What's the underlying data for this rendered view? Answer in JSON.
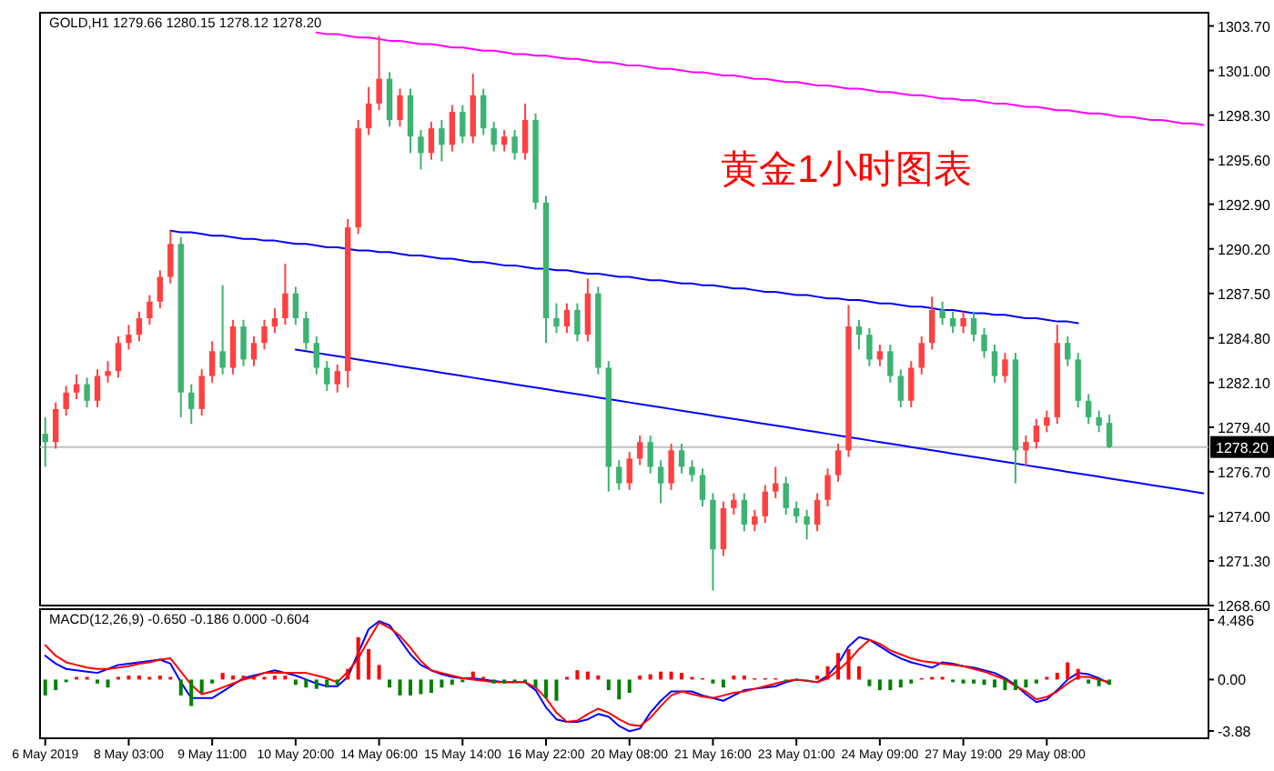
{
  "chart_data": [
    {
      "type": "candlestick",
      "title": "GOLD,H1 1279.66 1280.15 1278.12 1278.20",
      "annotations": [
        "黄金1小时图表"
      ],
      "categories": [
        null,
        null,
        null,
        null,
        null,
        null,
        null,
        null,
        null,
        null,
        null,
        null,
        null,
        null,
        null,
        null,
        null,
        null,
        null,
        null,
        null,
        null,
        null,
        null,
        null,
        null,
        null,
        null,
        null,
        null,
        null,
        null,
        null,
        null,
        null,
        null,
        null,
        null,
        null,
        null,
        null,
        null,
        null,
        null,
        null,
        null,
        null,
        null,
        null,
        null,
        null,
        null,
        null,
        null,
        null,
        null,
        null,
        null,
        null,
        null,
        null,
        null,
        null,
        null,
        null,
        null,
        null,
        null,
        null,
        null,
        null,
        null,
        null,
        null,
        null,
        null,
        null,
        null,
        null,
        null,
        null,
        null,
        null,
        null,
        null,
        null,
        null,
        null,
        null,
        null,
        null,
        null,
        null,
        null,
        null,
        null,
        null,
        null,
        null,
        null,
        null,
        null,
        null,
        null,
        null,
        null,
        null,
        null,
        null,
        null,
        null,
        null
      ],
      "ylim": [
        1268.6,
        1304.5
      ],
      "yticks": [
        {
          "value": 1268.6,
          "label": "1268.60"
        },
        {
          "value": 1271.3,
          "label": "1271.30"
        },
        {
          "value": 1274,
          "label": "1274.00"
        },
        {
          "value": 1276.7,
          "label": "1276.70"
        },
        {
          "value": 1279.4,
          "label": "1279.40"
        },
        {
          "value": 1282.1,
          "label": "1282.10"
        },
        {
          "value": 1284.8,
          "label": "1284.80"
        },
        {
          "value": 1287.5,
          "label": "1287.50"
        },
        {
          "value": 1290.2,
          "label": "1290.20"
        },
        {
          "value": 1292.9,
          "label": "1292.90"
        },
        {
          "value": 1295.6,
          "label": "1295.60"
        },
        {
          "value": 1298.3,
          "label": "1298.30"
        },
        {
          "value": 1301,
          "label": "1301.00"
        },
        {
          "value": 1303.7,
          "label": "1303.70"
        }
      ],
      "ref_lines": [
        {
          "axis": "y",
          "value": 1278.2,
          "label": "1278.20",
          "color": "#c0c0c0"
        }
      ],
      "ohlc": [
        [
          1279.0,
          1280.0,
          1277.0,
          1278.5
        ],
        [
          1278.5,
          1280.9,
          1278.1,
          1280.5
        ],
        [
          1280.5,
          1281.9,
          1280.1,
          1281.5
        ],
        [
          1281.5,
          1282.6,
          1281.1,
          1282.0
        ],
        [
          1282.0,
          1282.4,
          1280.6,
          1281.0
        ],
        [
          1281.0,
          1282.9,
          1280.6,
          1282.5
        ],
        [
          1282.5,
          1283.4,
          1282.1,
          1282.8
        ],
        [
          1282.8,
          1284.9,
          1282.4,
          1284.5
        ],
        [
          1284.5,
          1285.6,
          1284.1,
          1285.0
        ],
        [
          1285.0,
          1286.4,
          1284.6,
          1286.0
        ],
        [
          1286.0,
          1287.4,
          1285.6,
          1287.0
        ],
        [
          1287.0,
          1288.9,
          1286.6,
          1288.5
        ],
        [
          1288.5,
          1291.3,
          1288.1,
          1290.5
        ],
        [
          1290.5,
          1290.9,
          1280.0,
          1281.5
        ],
        [
          1281.5,
          1282.0,
          1279.6,
          1280.5
        ],
        [
          1280.5,
          1282.9,
          1280.1,
          1282.5
        ],
        [
          1282.5,
          1284.6,
          1282.1,
          1284.0
        ],
        [
          1284.0,
          1288.0,
          1282.6,
          1283.0
        ],
        [
          1283.0,
          1285.9,
          1282.6,
          1285.5
        ],
        [
          1285.5,
          1285.9,
          1283.1,
          1283.5
        ],
        [
          1283.5,
          1284.9,
          1283.1,
          1284.5
        ],
        [
          1284.5,
          1285.9,
          1284.1,
          1285.5
        ],
        [
          1285.5,
          1286.6,
          1285.1,
          1286.0
        ],
        [
          1286.0,
          1289.3,
          1285.6,
          1287.5
        ],
        [
          1287.5,
          1287.9,
          1285.6,
          1286.0
        ],
        [
          1286.0,
          1286.4,
          1284.1,
          1284.5
        ],
        [
          1284.5,
          1284.9,
          1282.6,
          1283.0
        ],
        [
          1283.0,
          1283.4,
          1281.6,
          1282.0
        ],
        [
          1282.0,
          1283.2,
          1281.5,
          1282.8
        ],
        [
          1282.8,
          1292.0,
          1281.8,
          1291.5
        ],
        [
          1291.5,
          1298.0,
          1291.1,
          1297.5
        ],
        [
          1297.5,
          1300.0,
          1297.1,
          1299.0
        ],
        [
          1299.0,
          1303.1,
          1298.6,
          1300.5
        ],
        [
          1300.5,
          1300.9,
          1297.6,
          1298.0
        ],
        [
          1298.0,
          1299.9,
          1297.6,
          1299.5
        ],
        [
          1299.5,
          1299.9,
          1296.0,
          1297.0
        ],
        [
          1297.0,
          1297.4,
          1295.0,
          1296.0
        ],
        [
          1296.0,
          1297.9,
          1295.6,
          1297.5
        ],
        [
          1297.5,
          1298.0,
          1295.5,
          1296.5
        ],
        [
          1296.5,
          1298.9,
          1296.1,
          1298.5
        ],
        [
          1298.5,
          1298.9,
          1296.6,
          1297.0
        ],
        [
          1297.0,
          1300.8,
          1296.6,
          1299.5
        ],
        [
          1299.5,
          1299.9,
          1297.1,
          1297.5
        ],
        [
          1297.5,
          1297.9,
          1296.1,
          1296.5
        ],
        [
          1296.5,
          1297.4,
          1296.1,
          1297.0
        ],
        [
          1297.0,
          1297.4,
          1295.6,
          1296.0
        ],
        [
          1296.0,
          1299.0,
          1295.6,
          1298.0
        ],
        [
          1298.0,
          1298.4,
          1292.6,
          1293.0
        ],
        [
          1293.0,
          1293.4,
          1284.5,
          1286.0
        ],
        [
          1286.0,
          1286.9,
          1285.1,
          1285.5
        ],
        [
          1285.5,
          1286.9,
          1285.1,
          1286.5
        ],
        [
          1286.5,
          1286.9,
          1284.6,
          1285.0
        ],
        [
          1285.0,
          1288.4,
          1284.6,
          1287.5
        ],
        [
          1287.5,
          1287.9,
          1282.6,
          1283.0
        ],
        [
          1283.0,
          1283.4,
          1275.5,
          1277.0
        ],
        [
          1277.0,
          1277.4,
          1275.6,
          1276.0
        ],
        [
          1276.0,
          1277.9,
          1275.6,
          1277.5
        ],
        [
          1277.5,
          1278.9,
          1277.1,
          1278.5
        ],
        [
          1278.5,
          1278.9,
          1276.6,
          1277.0
        ],
        [
          1277.0,
          1277.4,
          1274.8,
          1276.0
        ],
        [
          1276.0,
          1278.4,
          1275.6,
          1278.0
        ],
        [
          1278.0,
          1278.4,
          1276.6,
          1277.0
        ],
        [
          1277.0,
          1277.4,
          1276.1,
          1276.5
        ],
        [
          1276.5,
          1276.9,
          1274.6,
          1275.0
        ],
        [
          1275.0,
          1275.4,
          1269.5,
          1272.0
        ],
        [
          1272.0,
          1274.9,
          1271.6,
          1274.5
        ],
        [
          1274.5,
          1275.4,
          1274.1,
          1275.0
        ],
        [
          1275.0,
          1275.4,
          1273.1,
          1273.5
        ],
        [
          1273.5,
          1274.4,
          1273.1,
          1274.0
        ],
        [
          1274.0,
          1275.9,
          1273.6,
          1275.5
        ],
        [
          1275.5,
          1277.0,
          1275.1,
          1276.0
        ],
        [
          1276.0,
          1276.4,
          1274.1,
          1274.5
        ],
        [
          1274.5,
          1274.9,
          1273.6,
          1274.0
        ],
        [
          1274.0,
          1274.4,
          1272.6,
          1273.5
        ],
        [
          1273.5,
          1275.4,
          1273.1,
          1275.0
        ],
        [
          1275.0,
          1276.9,
          1274.6,
          1276.5
        ],
        [
          1276.5,
          1278.4,
          1276.1,
          1278.0
        ],
        [
          1278.0,
          1286.8,
          1277.6,
          1285.5
        ],
        [
          1285.5,
          1285.9,
          1284.1,
          1285.0
        ],
        [
          1285.0,
          1285.4,
          1283.1,
          1283.5
        ],
        [
          1283.5,
          1284.4,
          1283.1,
          1284.0
        ],
        [
          1284.0,
          1284.4,
          1282.1,
          1282.5
        ],
        [
          1282.5,
          1282.9,
          1280.6,
          1281.0
        ],
        [
          1281.0,
          1283.4,
          1280.6,
          1283.0
        ],
        [
          1283.0,
          1284.9,
          1282.6,
          1284.5
        ],
        [
          1284.5,
          1287.3,
          1284.1,
          1286.5
        ],
        [
          1286.5,
          1287.0,
          1285.6,
          1286.0
        ],
        [
          1286.0,
          1286.4,
          1285.1,
          1285.5
        ],
        [
          1285.5,
          1286.4,
          1285.1,
          1286.0
        ],
        [
          1286.0,
          1286.4,
          1284.6,
          1285.0
        ],
        [
          1285.0,
          1285.4,
          1283.6,
          1284.0
        ],
        [
          1284.0,
          1284.4,
          1282.1,
          1282.5
        ],
        [
          1282.5,
          1283.9,
          1282.1,
          1283.5
        ],
        [
          1283.5,
          1283.9,
          1276.0,
          1278.0
        ],
        [
          1278.0,
          1278.9,
          1277.1,
          1278.5
        ],
        [
          1278.5,
          1279.9,
          1278.1,
          1279.5
        ],
        [
          1279.5,
          1280.4,
          1279.1,
          1280.0
        ],
        [
          1280.0,
          1285.6,
          1279.6,
          1284.5
        ],
        [
          1284.5,
          1284.9,
          1283.1,
          1283.5
        ],
        [
          1283.5,
          1283.9,
          1280.6,
          1281.0
        ],
        [
          1281.0,
          1281.4,
          1279.6,
          1280.0
        ],
        [
          1280.0,
          1280.4,
          1279.1,
          1279.5
        ],
        [
          1279.66,
          1280.15,
          1278.12,
          1278.2
        ],
        null,
        null,
        null,
        null,
        null,
        null,
        null,
        null,
        null
      ],
      "colors": [
        "#3cb371",
        "#ff4040",
        "#ff4040",
        "#ff4040",
        "#3cb371",
        "#ff4040",
        "#ff4040",
        "#ff4040",
        "#ff4040",
        "#ff4040",
        "#ff4040",
        "#ff4040",
        "#ff4040",
        "#3cb371",
        "#3cb371",
        "#ff4040",
        "#ff4040",
        "#3cb371",
        "#ff4040",
        "#3cb371",
        "#ff4040",
        "#ff4040",
        "#ff4040",
        "#ff4040",
        "#3cb371",
        "#3cb371",
        "#3cb371",
        "#3cb371",
        "#ff4040",
        "#ff4040",
        "#ff4040",
        "#ff4040",
        "#ff4040",
        "#3cb371",
        "#ff4040",
        "#3cb371",
        "#3cb371",
        "#ff4040",
        "#3cb371",
        "#ff4040",
        "#3cb371",
        "#ff4040",
        "#3cb371",
        "#3cb371",
        "#ff4040",
        "#3cb371",
        "#ff4040",
        "#3cb371",
        "#3cb371",
        "#3cb371",
        "#ff4040",
        "#3cb371",
        "#ff4040",
        "#3cb371",
        "#3cb371",
        "#3cb371",
        "#ff4040",
        "#ff4040",
        "#3cb371",
        "#3cb371",
        "#ff4040",
        "#3cb371",
        "#3cb371",
        "#3cb371",
        "#3cb371",
        "#ff4040",
        "#ff4040",
        "#3cb371",
        "#ff4040",
        "#ff4040",
        "#ff4040",
        "#3cb371",
        "#3cb371",
        "#3cb371",
        "#ff4040",
        "#ff4040",
        "#ff4040",
        "#ff4040",
        "#3cb371",
        "#3cb371",
        "#ff4040",
        "#3cb371",
        "#3cb371",
        "#ff4040",
        "#ff4040",
        "#ff4040",
        "#3cb371",
        "#3cb371",
        "#ff4040",
        "#3cb371",
        "#3cb371",
        "#3cb371",
        "#ff4040",
        "#3cb371",
        "#ff4040",
        "#ff4040",
        "#ff4040",
        "#ff4040",
        "#3cb371",
        "#3cb371",
        "#3cb371",
        "#3cb371",
        "#3cb371",
        null,
        null,
        null,
        null,
        null,
        null,
        null,
        null,
        null
      ],
      "series": [
        {
          "type": "line",
          "color": "#ff00ff",
          "values": [
            null,
            null,
            null,
            null,
            null,
            null,
            null,
            null,
            null,
            null,
            null,
            null,
            null,
            null,
            null,
            null,
            null,
            null,
            null,
            null,
            null,
            null,
            null,
            null,
            null,
            null,
            1303.3,
            1303.2,
            1303.2,
            1303.1,
            1303.0,
            1303.0,
            1302.9,
            1302.8,
            1302.8,
            1302.7,
            1302.6,
            1302.6,
            1302.5,
            1302.4,
            1302.4,
            1302.3,
            1302.2,
            1302.2,
            1302.1,
            1302.0,
            1302.0,
            1301.9,
            1301.9,
            1301.8,
            1301.7,
            1301.7,
            1301.6,
            1301.5,
            1301.5,
            1301.4,
            1301.3,
            1301.3,
            1301.2,
            1301.1,
            1301.1,
            1301.0,
            1300.9,
            1300.9,
            1300.8,
            1300.7,
            1300.7,
            1300.6,
            1300.5,
            1300.5,
            1300.4,
            1300.3,
            1300.3,
            1300.2,
            1300.1,
            1300.1,
            1300.0,
            1299.9,
            1299.9,
            1299.8,
            1299.7,
            1299.7,
            1299.6,
            1299.5,
            1299.5,
            1299.4,
            1299.3,
            1299.3,
            1299.2,
            1299.2,
            1299.1,
            1299.0,
            1299.0,
            1298.9,
            1298.8,
            1298.8,
            1298.7,
            1298.6,
            1298.6,
            1298.5,
            1298.4,
            1298.4,
            1298.3,
            1298.2,
            1298.2,
            1298.1,
            1298.0,
            1298.0,
            1297.9,
            1297.8,
            1297.8,
            1297.7
          ]
        },
        {
          "type": "line",
          "color": "#0000ff",
          "values": [
            null,
            null,
            null,
            null,
            null,
            null,
            null,
            null,
            null,
            null,
            null,
            null,
            1291.3,
            1291.2,
            1291.2,
            1291.1,
            1291.0,
            1291.0,
            1290.9,
            1290.8,
            1290.8,
            1290.7,
            1290.7,
            1290.6,
            1290.5,
            1290.5,
            1290.4,
            1290.3,
            1290.3,
            1290.2,
            1290.1,
            1290.1,
            1290.0,
            1290.0,
            1289.9,
            1289.8,
            1289.8,
            1289.7,
            1289.6,
            1289.6,
            1289.5,
            1289.4,
            1289.4,
            1289.3,
            1289.2,
            1289.2,
            1289.1,
            1289.0,
            1289.0,
            1288.9,
            1288.9,
            1288.8,
            1288.7,
            1288.7,
            1288.6,
            1288.5,
            1288.5,
            1288.4,
            1288.3,
            1288.3,
            1288.2,
            1288.1,
            1288.1,
            1288.0,
            1288.0,
            1287.9,
            1287.8,
            1287.8,
            1287.7,
            1287.6,
            1287.6,
            1287.5,
            1287.4,
            1287.4,
            1287.3,
            1287.2,
            1287.2,
            1287.1,
            1287.1,
            1287.0,
            1286.9,
            1286.9,
            1286.8,
            1286.7,
            1286.7,
            1286.6,
            1286.5,
            1286.5,
            1286.4,
            1286.3,
            1286.3,
            1286.2,
            1286.2,
            1286.1,
            1286.0,
            1286.0,
            1285.9,
            1285.8,
            1285.8,
            1285.7,
            null,
            null,
            null,
            null,
            null,
            null,
            null,
            null,
            null,
            null,
            null,
            null
          ]
        },
        {
          "type": "line",
          "color": "#0000ff",
          "values": [
            null,
            null,
            null,
            null,
            null,
            null,
            null,
            null,
            null,
            null,
            null,
            null,
            null,
            null,
            null,
            null,
            null,
            null,
            null,
            null,
            null,
            null,
            null,
            null,
            1284.1,
            1284.0,
            1283.9,
            1283.8,
            1283.7,
            1283.6,
            1283.5,
            1283.4,
            1283.3,
            1283.2,
            1283.1,
            1283.0,
            1282.9,
            1282.8,
            1282.7,
            1282.6,
            1282.5,
            1282.4,
            1282.3,
            1282.2,
            1282.1,
            1282.0,
            1281.9,
            1281.8,
            1281.7,
            1281.6,
            1281.5,
            1281.4,
            1281.3,
            1281.2,
            1281.1,
            1281.0,
            1280.9,
            1280.8,
            1280.7,
            1280.6,
            1280.5,
            1280.4,
            1280.3,
            1280.2,
            1280.1,
            1280.0,
            1279.9,
            1279.8,
            1279.7,
            1279.6,
            1279.5,
            1279.4,
            1279.3,
            1279.2,
            1279.1,
            1279.0,
            1278.9,
            1278.8,
            1278.7,
            1278.6,
            1278.5,
            1278.4,
            1278.3,
            1278.2,
            1278.1,
            1278.0,
            1277.9,
            1277.8,
            1277.7,
            1277.6,
            1277.5,
            1277.4,
            1277.3,
            1277.2,
            1277.1,
            1277.0,
            1276.9,
            1276.8,
            1276.7,
            1276.6,
            1276.5,
            1276.4,
            1276.3,
            1276.2,
            1276.1,
            1276.0,
            1275.9,
            1275.8,
            1275.7,
            1275.6,
            1275.5,
            1275.4
          ]
        }
      ]
    },
    {
      "type": "line",
      "title": "MACD(12,26,9) -0.650 -0.186 0.000 -0.604",
      "categories": [
        "6 May 2019",
        null,
        null,
        null,
        null,
        null,
        null,
        null,
        "8 May 03:00",
        null,
        null,
        null,
        null,
        null,
        null,
        null,
        "9 May 11:00",
        null,
        null,
        null,
        null,
        null,
        null,
        null,
        "10 May 20:00",
        null,
        null,
        null,
        null,
        null,
        null,
        null,
        "14 May 06:00",
        null,
        null,
        null,
        null,
        null,
        null,
        null,
        "15 May 14:00",
        null,
        null,
        null,
        null,
        null,
        null,
        null,
        "16 May 22:00",
        null,
        null,
        null,
        null,
        null,
        null,
        null,
        "20 May 08:00",
        null,
        null,
        null,
        null,
        null,
        null,
        null,
        "21 May 16:00",
        null,
        null,
        null,
        null,
        null,
        null,
        null,
        "23 May 01:00",
        null,
        null,
        null,
        null,
        null,
        null,
        null,
        "24 May 09:00",
        null,
        null,
        null,
        null,
        null,
        null,
        null,
        "27 May 19:00",
        null,
        null,
        null,
        null,
        null,
        null,
        null,
        "29 May 08:00",
        null,
        null,
        null,
        null,
        null,
        null,
        null,
        null,
        null,
        null,
        null,
        null,
        null,
        null,
        null
      ],
      "ylim": [
        -4.43,
        5.31
      ],
      "yticks": [
        -3.88,
        {
          "value": 0,
          "label": "0.00"
        },
        4.486
      ],
      "series": [
        {
          "type": "bar",
          "values": [
            -1.2,
            -0.8,
            -0.2,
            0.2,
            0.2,
            -0.3,
            -0.6,
            0.2,
            0.3,
            0.3,
            0.2,
            0.3,
            0.2,
            -1.2,
            -2.0,
            -1.0,
            -0.3,
            0.5,
            0.3,
            0.3,
            0.2,
            0.2,
            0.3,
            0.3,
            -0.4,
            -0.6,
            -0.7,
            -0.6,
            -0.4,
            0.8,
            3.2,
            2.3,
            1.1,
            -0.6,
            -1.2,
            -1.2,
            -1.1,
            -1.0,
            -0.6,
            -0.4,
            -0.2,
            0.6,
            0.2,
            -0.3,
            -0.3,
            -0.2,
            -0.2,
            -0.6,
            -1.4,
            -1.6,
            0.2,
            0.7,
            0.6,
            0.3,
            -0.8,
            -1.5,
            -1.0,
            0.3,
            0.4,
            0.6,
            0.6,
            0.5,
            0.2,
            0.1,
            -0.3,
            -0.6,
            0.3,
            0.3,
            0.1,
            0.1,
            0.1,
            -0.1,
            -0.1,
            -0.1,
            0.3,
            1.0,
            2.0,
            2.3,
            1.0,
            -0.5,
            -0.8,
            -0.8,
            -0.6,
            -0.3,
            0.1,
            0.2,
            0.2,
            -0.2,
            -0.3,
            -0.3,
            -0.4,
            -0.6,
            -0.8,
            -0.8,
            -0.6,
            -0.3,
            0.2,
            0.5,
            1.3,
            0.8,
            -0.3,
            -0.5,
            -0.4,
            null,
            null,
            null,
            null,
            null,
            null,
            null,
            null,
            null
          ],
          "colors": [
            "#008000",
            "#008000",
            "#008000",
            "#ff0000",
            "#ff0000",
            "#008000",
            "#008000",
            "#ff0000",
            "#ff0000",
            "#ff0000",
            "#ff0000",
            "#ff0000",
            "#ff0000",
            "#008000",
            "#008000",
            "#008000",
            "#008000",
            "#ff0000",
            "#ff0000",
            "#ff0000",
            "#ff0000",
            "#ff0000",
            "#ff0000",
            "#ff0000",
            "#008000",
            "#008000",
            "#008000",
            "#008000",
            "#008000",
            "#ff0000",
            "#ff0000",
            "#ff0000",
            "#ff0000",
            "#008000",
            "#008000",
            "#008000",
            "#008000",
            "#008000",
            "#008000",
            "#008000",
            "#008000",
            "#ff0000",
            "#ff0000",
            "#008000",
            "#008000",
            "#008000",
            "#008000",
            "#008000",
            "#008000",
            "#008000",
            "#ff0000",
            "#ff0000",
            "#ff0000",
            "#ff0000",
            "#008000",
            "#008000",
            "#008000",
            "#ff0000",
            "#ff0000",
            "#ff0000",
            "#ff0000",
            "#ff0000",
            "#ff0000",
            "#ff0000",
            "#008000",
            "#008000",
            "#ff0000",
            "#ff0000",
            "#ff0000",
            "#ff0000",
            "#ff0000",
            "#008000",
            "#008000",
            "#008000",
            "#ff0000",
            "#ff0000",
            "#ff0000",
            "#ff0000",
            "#ff0000",
            "#008000",
            "#008000",
            "#008000",
            "#008000",
            "#008000",
            "#ff0000",
            "#ff0000",
            "#ff0000",
            "#008000",
            "#008000",
            "#008000",
            "#008000",
            "#008000",
            "#008000",
            "#008000",
            "#008000",
            "#008000",
            "#ff0000",
            "#ff0000",
            "#ff0000",
            "#ff0000",
            "#008000",
            "#008000",
            "#008000",
            null,
            null,
            null,
            null,
            null,
            null,
            null,
            null,
            null
          ]
        },
        {
          "type": "line",
          "color": "#0000ff",
          "values": [
            1.8,
            1.2,
            0.8,
            0.7,
            0.6,
            0.5,
            0.8,
            1.1,
            1.2,
            1.3,
            1.4,
            1.5,
            1.2,
            -0.2,
            -1.4,
            -1.4,
            -1.4,
            -0.9,
            -0.4,
            0.1,
            0.3,
            0.5,
            0.7,
            0.5,
            0.3,
            0,
            -0.3,
            -0.5,
            -0.5,
            0.2,
            2.0,
            3.8,
            4.4,
            4.1,
            3.0,
            1.9,
            1.1,
            0.7,
            0.4,
            0.2,
            0.1,
            0.1,
            0,
            -0.1,
            -0.2,
            -0.2,
            -0.2,
            -0.8,
            -2.1,
            -3.0,
            -3.2,
            -3.2,
            -3.0,
            -2.6,
            -2.8,
            -3.5,
            -3.9,
            -3.7,
            -2.5,
            -1.6,
            -0.9,
            -0.9,
            -0.9,
            -1.2,
            -1.4,
            -1.6,
            -1.2,
            -0.8,
            -0.7,
            -0.6,
            -0.5,
            -0.2,
            0,
            -0.1,
            -0.2,
            0.3,
            1.2,
            2.5,
            3.2,
            3.0,
            2.5,
            2.0,
            1.6,
            1.3,
            1.1,
            0.9,
            1.3,
            1.2,
            1.0,
            0.9,
            0.7,
            0.5,
            0.1,
            -0.4,
            -1.1,
            -1.7,
            -1.5,
            -0.8,
            0,
            0.5,
            0.4,
            0.1,
            -0.3,
            null,
            null,
            null,
            null,
            null,
            null,
            null,
            null,
            null
          ]
        },
        {
          "type": "line",
          "color": "#ff0000",
          "values": [
            2.6,
            1.8,
            1.3,
            1.1,
            0.9,
            0.8,
            0.8,
            0.9,
            1.0,
            1.2,
            1.3,
            1.5,
            1.6,
            0.6,
            -0.4,
            -1.1,
            -0.9,
            -0.6,
            -0.3,
            0,
            0.2,
            0.5,
            0.5,
            0.5,
            0.5,
            0.5,
            0.3,
            0.1,
            -0.2,
            0.6,
            1.6,
            3.0,
            4.3,
            3.9,
            3.3,
            2.4,
            1.4,
            0.7,
            0.5,
            0.3,
            0.1,
            0,
            -0.1,
            -0.2,
            -0.2,
            -0.2,
            -0.2,
            -0.6,
            -1.4,
            -2.5,
            -3.2,
            -3.1,
            -2.6,
            -2.2,
            -2.5,
            -3.0,
            -3.4,
            -3.5,
            -2.9,
            -2.0,
            -1.2,
            -0.9,
            -1.1,
            -1.3,
            -1.4,
            -1.2,
            -1.0,
            -0.9,
            -0.7,
            -0.5,
            -0.3,
            -0.1,
            0,
            -0.1,
            -0.2,
            0.1,
            0.7,
            1.4,
            2.3,
            3.0,
            2.7,
            2.2,
            1.9,
            1.6,
            1.4,
            1.3,
            1.2,
            1.1,
            1.0,
            0.8,
            0.6,
            0.3,
            0,
            -0.5,
            -0.9,
            -1.5,
            -1.3,
            -0.9,
            -0.3,
            0.2,
            0.2,
            0,
            -0.2,
            null,
            null,
            null,
            null,
            null,
            null,
            null,
            null,
            null
          ]
        }
      ]
    }
  ]
}
